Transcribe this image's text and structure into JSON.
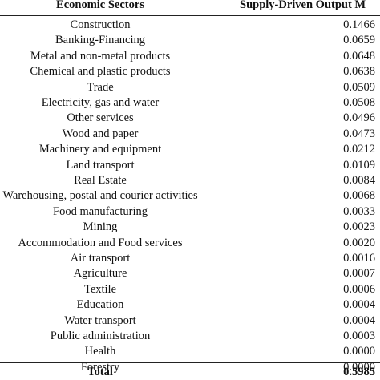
{
  "table": {
    "header": [
      "Economic Sectors",
      "Supply-Driven Output M"
    ],
    "rows": [
      [
        "Construction",
        "0.1466"
      ],
      [
        "Banking-Financing",
        "0.0659"
      ],
      [
        "Metal and non-metal products",
        "0.0648"
      ],
      [
        "Chemical and plastic products",
        "0.0638"
      ],
      [
        "Trade",
        "0.0509"
      ],
      [
        "Electricity, gas and water",
        "0.0508"
      ],
      [
        "Other services",
        "0.0496"
      ],
      [
        "Wood and paper",
        "0.0473"
      ],
      [
        "Machinery and equipment",
        "0.0212"
      ],
      [
        "Land transport",
        "0.0109"
      ],
      [
        "Real Estate",
        "0.0084"
      ],
      [
        "Warehousing, postal and courier activities",
        "0.0068"
      ],
      [
        "Food manufacturing",
        "0.0033"
      ],
      [
        "Mining",
        "0.0023"
      ],
      [
        "Accommodation and Food services",
        "0.0020"
      ],
      [
        "Air transport",
        "0.0016"
      ],
      [
        "Agriculture",
        "0.0007"
      ],
      [
        "Textile",
        "0.0006"
      ],
      [
        "Education",
        "0.0004"
      ],
      [
        "Water transport",
        "0.0004"
      ],
      [
        "Public administration",
        "0.0003"
      ],
      [
        "Health",
        "0.0000"
      ],
      [
        "Forestry",
        "0.0000"
      ]
    ],
    "total": [
      "Total",
      "0.5985"
    ]
  }
}
